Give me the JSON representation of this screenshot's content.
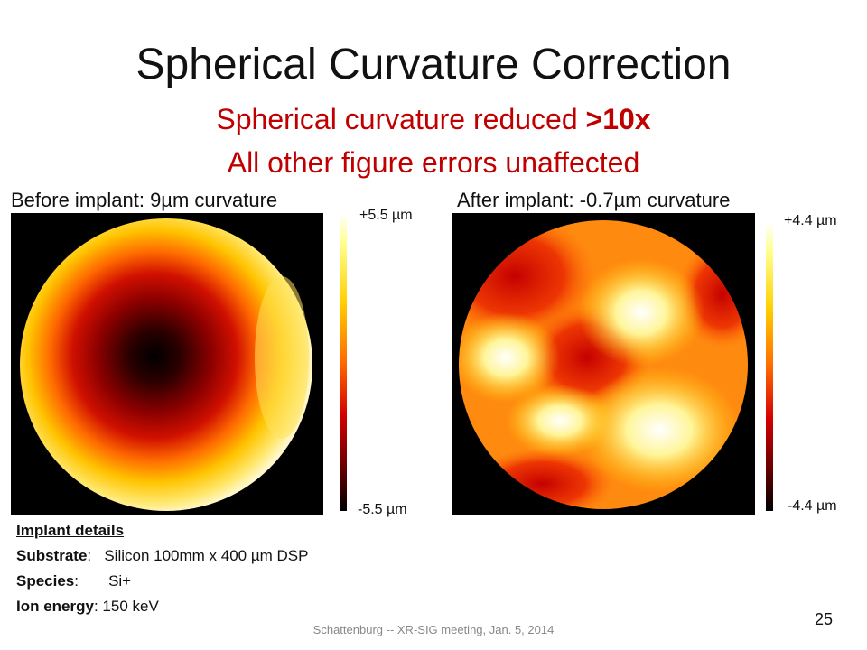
{
  "slide": {
    "title": "Spherical Curvature Correction",
    "subtitle_line1_prefix": "Spherical curvature reduced ",
    "subtitle_line1_emph": ">10x",
    "subtitle_line2": "All other figure errors unaffected",
    "before_caption": "Before implant: 9µm curvature",
    "after_caption": "After implant: -0.7µm curvature",
    "before_scale": {
      "max_label": "+5.5 µm",
      "min_label": "-5.5 µm"
    },
    "after_scale": {
      "max_label": "+4.4 µm",
      "min_label": "-4.4 µm"
    },
    "details": {
      "heading": "Implant details",
      "substrate_key": "Substrate",
      "substrate_value": "Silicon 100mm x 400 µm DSP",
      "species_key": "Species",
      "species_value": "Si+",
      "ion_energy_key": "Ion energy",
      "ion_energy_value": "150 keV"
    },
    "footer": "Schattenburg -- XR-SIG meeting, Jan. 5, 2014",
    "page_number": "25"
  },
  "colors": {
    "title": "#111111",
    "subtitle": "#c00000",
    "footer": "#888888",
    "map_background": "#000000"
  }
}
